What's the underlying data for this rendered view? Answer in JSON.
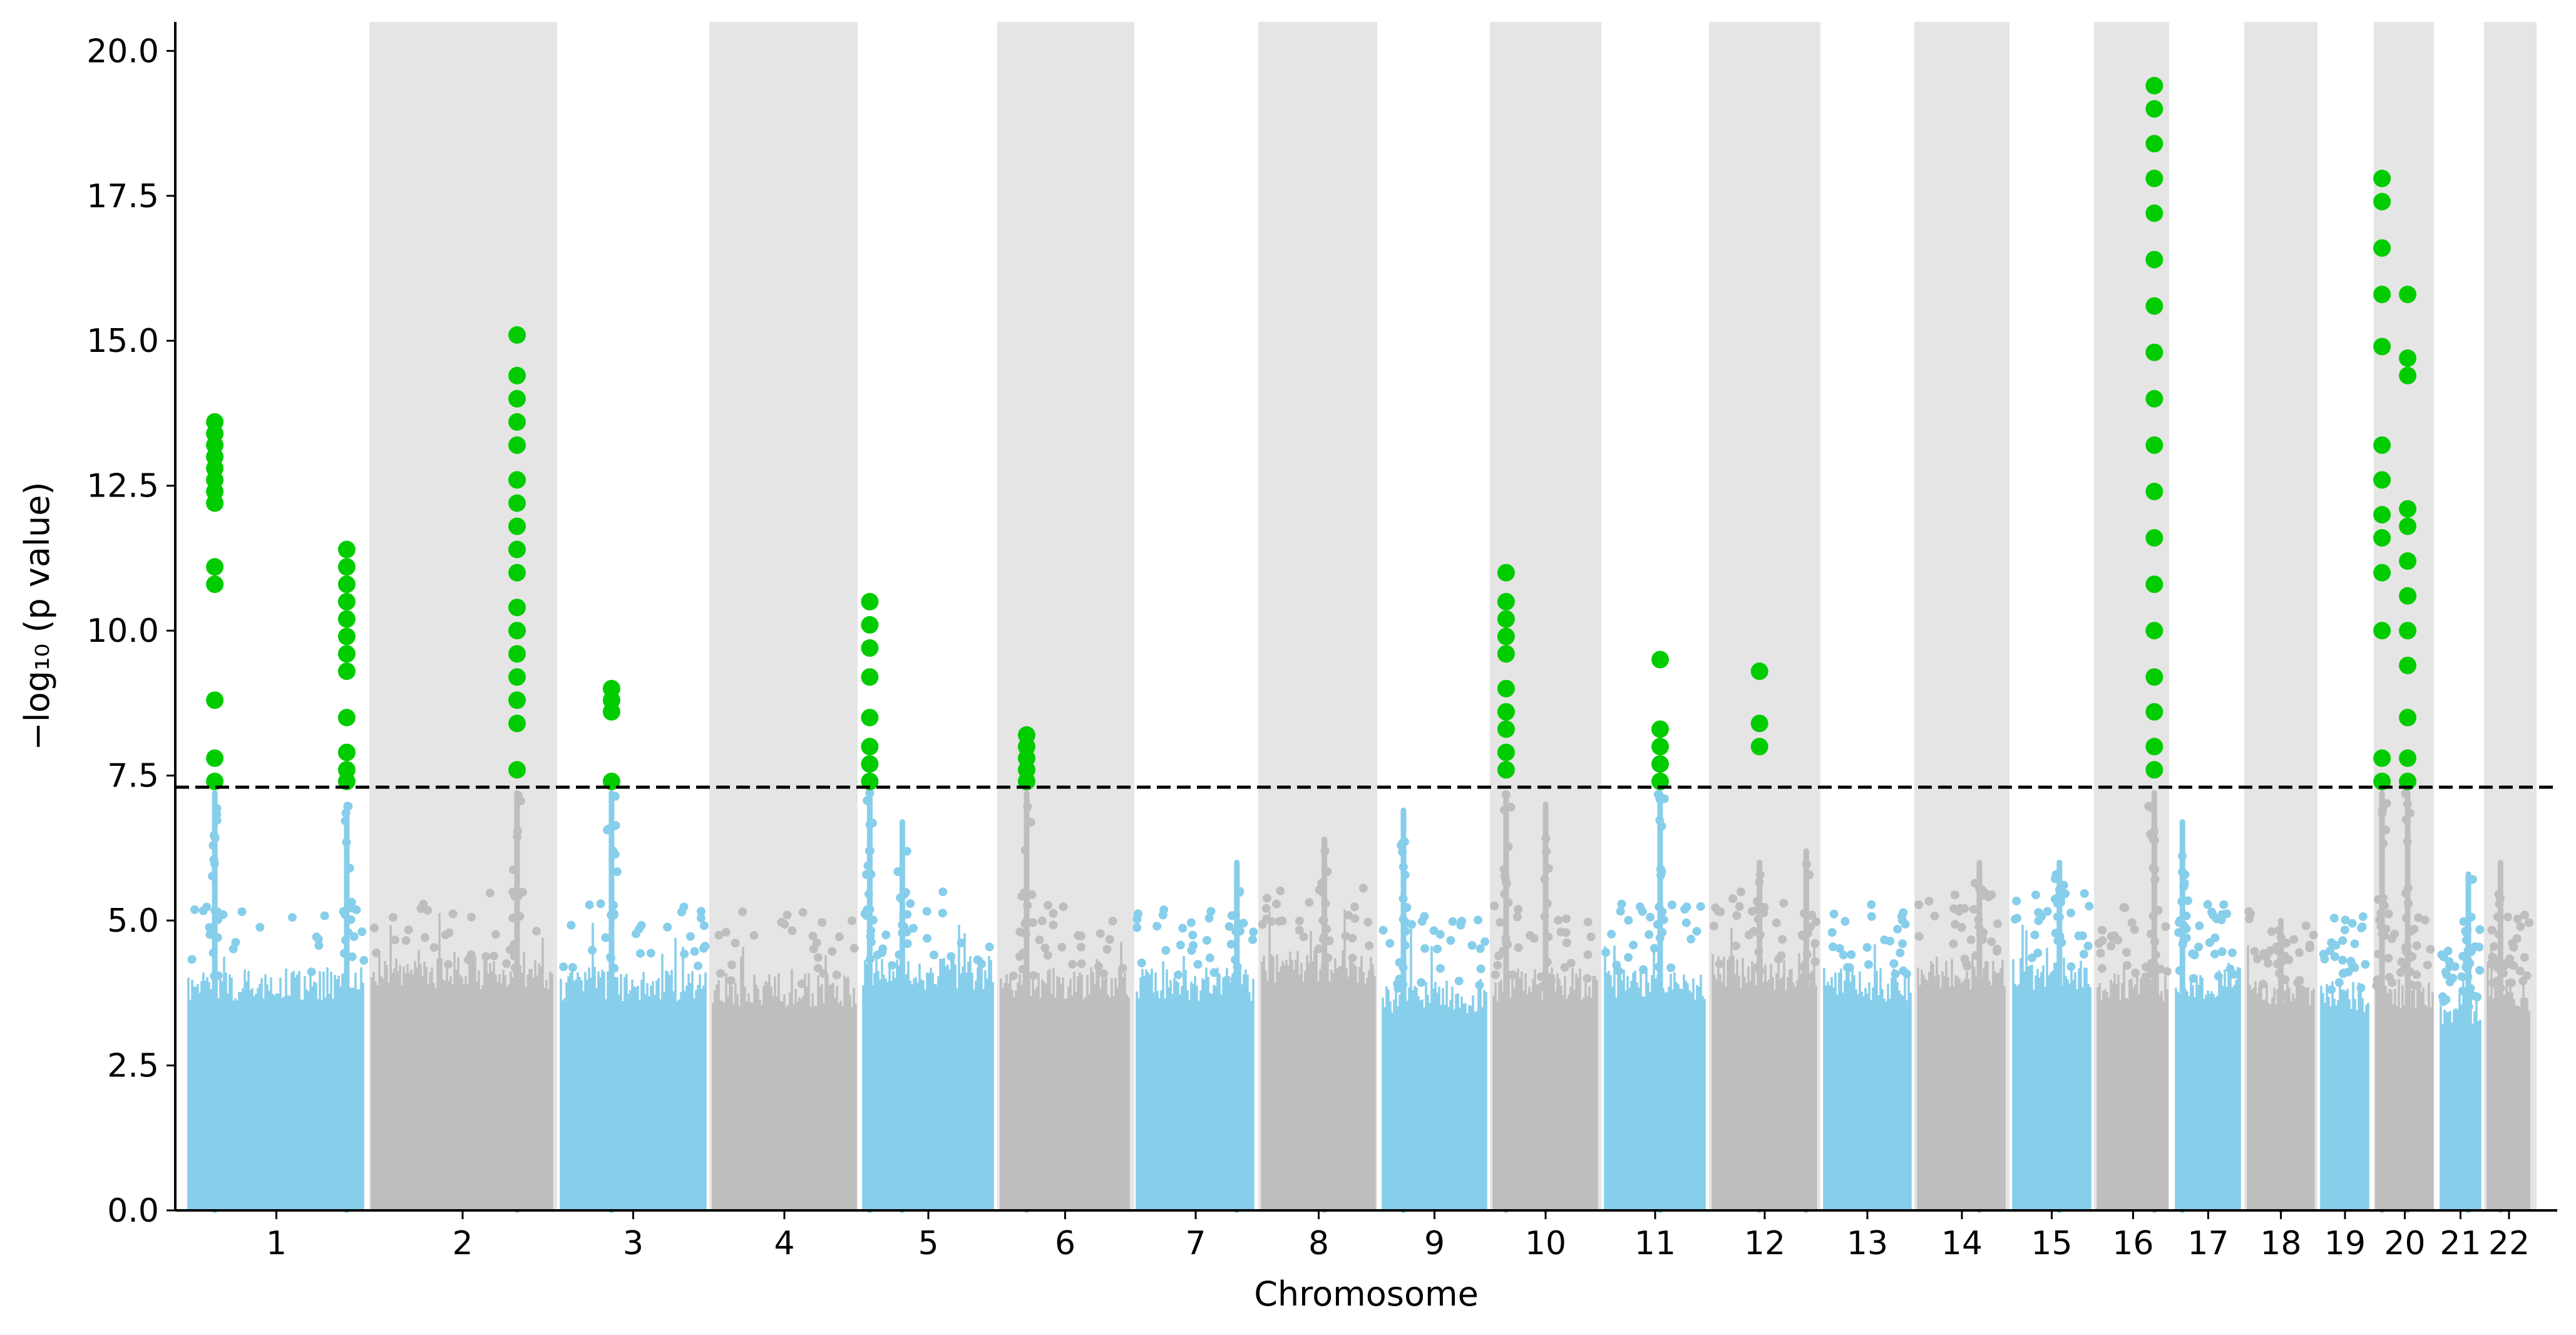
{
  "chart_data": {
    "type": "scatter",
    "subtype": "manhattan",
    "xlabel": "Chromosome",
    "ylabel": "−log₁₀ (p value)",
    "ylim": [
      0,
      20.5
    ],
    "yticks": [
      "0.0",
      "2.5",
      "5.0",
      "7.5",
      "10.0",
      "12.5",
      "15.0",
      "17.5",
      "20.0"
    ],
    "threshold": 7.3,
    "grid": false,
    "legend": "none",
    "alternating_band_color": "#e5e5e5",
    "colors": {
      "odd": "#87ceeb",
      "even": "#bebebe",
      "significant": "#00cc00",
      "threshold_line": "#000000"
    },
    "chromosomes": [
      {
        "label": "1",
        "typical_max": 4.0,
        "background_peaks": [
          [
            0.15,
            7.2
          ],
          [
            0.9,
            7.0
          ]
        ],
        "significant": [
          [
            0.15,
            [
              7.4,
              7.8,
              8.8,
              10.8,
              11.1,
              12.2,
              12.4,
              12.6,
              12.8,
              13.0,
              13.2,
              13.4,
              13.6
            ]
          ],
          [
            0.9,
            [
              7.4,
              7.6,
              7.9,
              8.5,
              9.3,
              9.6,
              9.9,
              10.2,
              10.5,
              10.8,
              11.1,
              11.4
            ]
          ]
        ]
      },
      {
        "label": "2",
        "typical_max": 4.2,
        "background_peaks": [
          [
            0.8,
            7.2
          ]
        ],
        "significant": [
          [
            0.8,
            [
              7.6,
              8.4,
              8.8,
              9.2,
              9.6,
              10.0,
              10.4,
              11.0,
              11.4,
              11.8,
              12.2,
              12.6,
              13.2,
              13.6,
              14.0,
              14.4,
              15.1
            ]
          ]
        ]
      },
      {
        "label": "3",
        "typical_max": 4.0,
        "background_peaks": [
          [
            0.35,
            7.2
          ]
        ],
        "significant": [
          [
            0.35,
            [
              7.4,
              8.6,
              8.8,
              9.0
            ]
          ]
        ]
      },
      {
        "label": "4",
        "typical_max": 3.9,
        "background_peaks": [],
        "significant": []
      },
      {
        "label": "5",
        "typical_max": 4.2,
        "background_peaks": [
          [
            0.05,
            7.2
          ],
          [
            0.3,
            6.7
          ]
        ],
        "significant": [
          [
            0.05,
            [
              7.4,
              7.7,
              8.0,
              8.5,
              9.2,
              9.7,
              10.1,
              10.5
            ]
          ]
        ]
      },
      {
        "label": "6",
        "typical_max": 4.0,
        "background_peaks": [
          [
            0.2,
            7.2
          ]
        ],
        "significant": [
          [
            0.2,
            [
              7.4,
              7.6,
              7.8,
              8.0,
              8.2
            ]
          ]
        ]
      },
      {
        "label": "7",
        "typical_max": 4.0,
        "background_peaks": [
          [
            0.85,
            6.0
          ]
        ],
        "significant": []
      },
      {
        "label": "8",
        "typical_max": 4.3,
        "background_peaks": [
          [
            0.55,
            6.4
          ]
        ],
        "significant": []
      },
      {
        "label": "9",
        "typical_max": 3.8,
        "background_peaks": [
          [
            0.2,
            6.9
          ]
        ],
        "significant": []
      },
      {
        "label": "10",
        "typical_max": 4.0,
        "background_peaks": [
          [
            0.12,
            7.2
          ],
          [
            0.5,
            7.0
          ]
        ],
        "significant": [
          [
            0.12,
            [
              7.6,
              7.9,
              8.3,
              8.6,
              9.0,
              9.6,
              9.9,
              10.2,
              10.5,
              11.0
            ]
          ]
        ]
      },
      {
        "label": "11",
        "typical_max": 4.0,
        "background_peaks": [
          [
            0.55,
            7.2
          ]
        ],
        "significant": [
          [
            0.55,
            [
              7.4,
              7.7,
              8.0,
              8.3,
              9.5
            ]
          ]
        ]
      },
      {
        "label": "12",
        "typical_max": 4.2,
        "background_peaks": [
          [
            0.45,
            6.0
          ],
          [
            0.9,
            6.2
          ]
        ],
        "significant": [
          [
            0.45,
            [
              8.0,
              8.4,
              9.3
            ]
          ]
        ]
      },
      {
        "label": "13",
        "typical_max": 4.0,
        "background_peaks": [],
        "significant": []
      },
      {
        "label": "14",
        "typical_max": 4.2,
        "background_peaks": [
          [
            0.7,
            6.0
          ]
        ],
        "significant": []
      },
      {
        "label": "15",
        "typical_max": 4.2,
        "background_peaks": [
          [
            0.6,
            6.0
          ]
        ],
        "significant": []
      },
      {
        "label": "16",
        "typical_max": 4.0,
        "background_peaks": [
          [
            0.8,
            7.2
          ]
        ],
        "significant": [
          [
            0.8,
            [
              7.6,
              8.0,
              8.6,
              9.2,
              10.0,
              10.8,
              11.6,
              12.4,
              13.2,
              14.0,
              14.8,
              15.6,
              16.4,
              17.2,
              17.8,
              18.4,
              19.0,
              19.4
            ]
          ]
        ]
      },
      {
        "label": "17",
        "typical_max": 4.0,
        "background_peaks": [
          [
            0.1,
            6.7
          ]
        ],
        "significant": []
      },
      {
        "label": "18",
        "typical_max": 3.9,
        "background_peaks": [
          [
            0.5,
            5.0
          ]
        ],
        "significant": []
      },
      {
        "label": "19",
        "typical_max": 3.8,
        "background_peaks": [],
        "significant": []
      },
      {
        "label": "20",
        "typical_max": 3.8,
        "background_peaks": [
          [
            0.1,
            7.2
          ],
          [
            0.55,
            7.2
          ]
        ],
        "significant": [
          [
            0.1,
            [
              7.4,
              7.8,
              10.0,
              11.0,
              11.6,
              12.0,
              12.6,
              13.2,
              14.9,
              15.8,
              16.6,
              17.4,
              17.8
            ]
          ],
          [
            0.55,
            [
              7.4,
              7.8,
              8.5,
              9.4,
              10.0,
              10.6,
              11.2,
              11.8,
              12.1,
              14.4,
              14.7,
              15.8
            ]
          ]
        ]
      },
      {
        "label": "21",
        "typical_max": 3.6,
        "background_peaks": [
          [
            0.7,
            5.8
          ]
        ],
        "significant": []
      },
      {
        "label": "22",
        "typical_max": 3.8,
        "background_peaks": [
          [
            0.3,
            6.0
          ]
        ],
        "significant": []
      }
    ]
  }
}
